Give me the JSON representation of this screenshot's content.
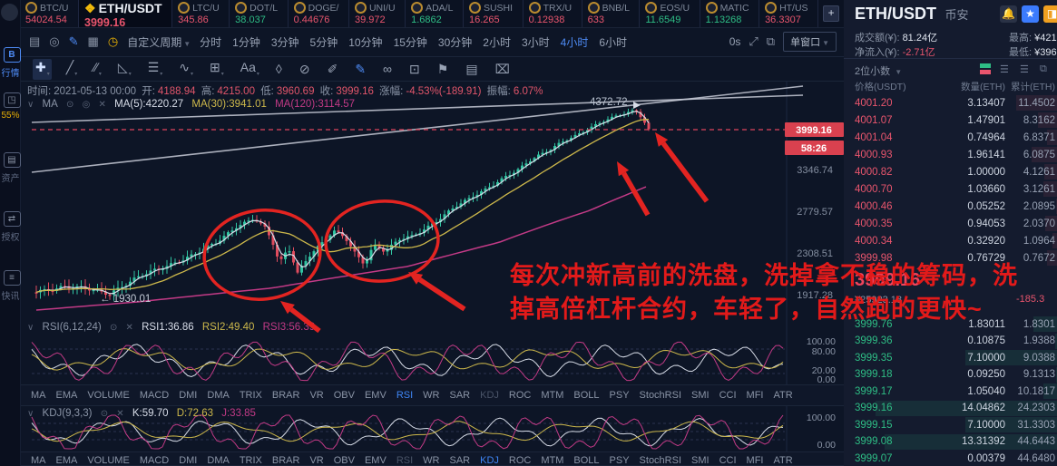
{
  "colors": {
    "up": "#2ebd85",
    "down": "#e9556d",
    "accent": "#4e8bf5",
    "badge": "#d9414f",
    "ma5": "#d8dde8",
    "ma30": "#cdb84b",
    "ma120": "#c23a86",
    "annotation": "#e21a1a"
  },
  "ticker": {
    "pairs": [
      {
        "name": "BTC/U",
        "price": "54024.54",
        "dir": "down"
      },
      {
        "name": "ETH/USDT",
        "price": "3999.16",
        "dir": "down",
        "selected": true
      },
      {
        "name": "LTC/U",
        "price": "345.86",
        "dir": "down"
      },
      {
        "name": "DOT/L",
        "price": "38.037",
        "dir": "up"
      },
      {
        "name": "DOGE/",
        "price": "0.44676",
        "dir": "down"
      },
      {
        "name": "UNI/U",
        "price": "39.972",
        "dir": "down"
      },
      {
        "name": "ADA/L",
        "price": "1.6862",
        "dir": "up"
      },
      {
        "name": "SUSHI",
        "price": "16.265",
        "dir": "down"
      },
      {
        "name": "TRX/U",
        "price": "0.12938",
        "dir": "down"
      },
      {
        "name": "BNB/L",
        "price": "633",
        "dir": "down"
      },
      {
        "name": "EOS/U",
        "price": "11.6549",
        "dir": "up"
      },
      {
        "name": "MATIC",
        "price": "1.13268",
        "dir": "up"
      },
      {
        "name": "HT/US",
        "price": "36.3307",
        "dir": "down"
      }
    ],
    "add_label": "+"
  },
  "sidebar": {
    "items": [
      {
        "label": "行情",
        "icon": "B",
        "style": "blue",
        "name": "sidebar-item-quotes"
      },
      {
        "label": "55%",
        "icon": "◳",
        "style": "yellow",
        "name": "sidebar-item-gauge"
      },
      {
        "label": "资产",
        "icon": "▤",
        "style": "gray",
        "name": "sidebar-item-assets"
      },
      {
        "label": "授权",
        "icon": "⇄",
        "style": "gray",
        "name": "sidebar-item-auth"
      },
      {
        "label": "快讯",
        "icon": "≡",
        "style": "gray",
        "name": "sidebar-item-news"
      }
    ]
  },
  "toolbar": {
    "left_icons": [
      {
        "name": "chart-style-icon",
        "glyph": "▤",
        "color": "#8a94a6"
      },
      {
        "name": "target-icon",
        "glyph": "◎",
        "color": "#8a94a6"
      },
      {
        "name": "draw-pencil-icon",
        "glyph": "✎",
        "color": "#4e8bf5"
      },
      {
        "name": "briefcase-icon",
        "glyph": "▦",
        "color": "#8a94a6"
      },
      {
        "name": "history-clock-icon",
        "glyph": "◷",
        "color": "#e8b004"
      }
    ],
    "period_label": "自定义周期",
    "timeframes": [
      "分时",
      "1分钟",
      "3分钟",
      "5分钟",
      "10分钟",
      "15分钟",
      "30分钟",
      "2小时",
      "3小时",
      "4小时",
      "6小时"
    ],
    "active_timeframe": "4小时",
    "countdown": "0s",
    "window_mode": "单窗口",
    "draw_icons": [
      {
        "name": "crosshair-icon",
        "glyph": "✚",
        "active": true,
        "caret": true
      },
      {
        "name": "trendline-icon",
        "glyph": "╱",
        "caret": true
      },
      {
        "name": "parallel-channel-icon",
        "glyph": "∕∕",
        "caret": true
      },
      {
        "name": "triangle-icon",
        "glyph": "◺",
        "caret": true
      },
      {
        "name": "horizontal-line-icon",
        "glyph": "☰",
        "caret": true
      },
      {
        "name": "wave-icon",
        "glyph": "∿",
        "caret": true
      },
      {
        "name": "fibonacci-box-icon",
        "glyph": "⊞",
        "caret": true
      },
      {
        "name": "text-tool-icon",
        "glyph": "Aa",
        "caret": true
      },
      {
        "name": "eraser-icon",
        "glyph": "◊"
      },
      {
        "name": "disable-draw-icon",
        "glyph": "⊘"
      },
      {
        "name": "pen-icon",
        "glyph": "✐"
      },
      {
        "name": "brush-wave-icon",
        "glyph": "✎",
        "highlight": true
      },
      {
        "name": "measure-icon",
        "glyph": "∞"
      },
      {
        "name": "lock-icon",
        "glyph": "⊡"
      },
      {
        "name": "flag-icon",
        "glyph": "⚑"
      },
      {
        "name": "notes-icon",
        "glyph": "▤"
      },
      {
        "name": "trash-icon",
        "glyph": "⌧"
      }
    ]
  },
  "ohlc": {
    "time_label": "时间:",
    "time": "2021-05-13 00:00",
    "open_label": "开:",
    "open": "4188.94",
    "high_label": "高:",
    "high": "4215.00",
    "low_label": "低:",
    "low": "3960.69",
    "close_label": "收:",
    "close": "3999.16",
    "change_label": "涨幅:",
    "change": "-4.53%(-189.91)",
    "amp_label": "振幅:",
    "amp": "6.07%"
  },
  "ma": {
    "title": "MA",
    "ma5": "MA(5):4220.27",
    "ma30": "MA(30):3941.01",
    "ma120": "MA(120):3114.57"
  },
  "chart": {
    "peak_label": "4372.72",
    "low_label": "← 1930.01",
    "price_badge": "3999.16",
    "countdown_badge": "58:26",
    "axis_labels": [
      "3346.74",
      "2779.57",
      "2308.51",
      "1917.28"
    ],
    "axis_prices": [
      3346.74,
      2779.57,
      2308.51,
      1917.28
    ],
    "current_price": 3999.16,
    "annotation_line1": "每次冲新高前的洗盘，洗掉拿不稳的筹码，洗",
    "annotation_line2": "掉高倍杠杆合约，车轻了，自然跑的更快~"
  },
  "rsi": {
    "title": "RSI(6,12,24)",
    "v1": "RSI1:36.86",
    "v2": "RSI2:49.40",
    "v3": "RSI3:56.39",
    "axis": [
      "100.00",
      "80.00",
      "20.00",
      "0.00"
    ]
  },
  "kdj": {
    "title": "KDJ(9,3,3)",
    "v1": "K:59.70",
    "v2": "D:72.63",
    "v3": "J:33.85",
    "axis": [
      "100.00",
      "0.00"
    ]
  },
  "tabs": {
    "items": [
      "MA",
      "EMA",
      "VOLUME",
      "MACD",
      "DMI",
      "DMA",
      "TRIX",
      "BRAR",
      "VR",
      "OBV",
      "EMV",
      "RSI",
      "WR",
      "SAR",
      "KDJ",
      "ROC",
      "MTM",
      "BOLL",
      "PSY",
      "StochRSI",
      "SMI",
      "CCI",
      "MFI",
      "ATR"
    ],
    "row1_active": "RSI",
    "row1_dim": "KDJ",
    "row2_active": "KDJ",
    "row2_dim": "RSI"
  },
  "orderbook": {
    "symbol": "ETH/USDT",
    "exchange": "币安",
    "turnover_label": "成交额(¥):",
    "turnover": "81.24亿",
    "inflow_label": "净流入(¥):",
    "inflow": "-2.71亿",
    "high_label": "最高:",
    "high": "¥4215.00",
    "low_label": "最低:",
    "low": "¥3960.69",
    "decimals_label": "2位小数",
    "col_price": "价格(USDT)",
    "col_amount": "数量(ETH)",
    "col_total": "累计(ETH)",
    "asks": [
      [
        "4001.20",
        "3.13407",
        "11.4502"
      ],
      [
        "4001.07",
        "1.47901",
        "8.3162"
      ],
      [
        "4001.04",
        "0.74964",
        "6.8371"
      ],
      [
        "4000.93",
        "1.96141",
        "6.0875"
      ],
      [
        "4000.82",
        "1.00000",
        "4.1261"
      ],
      [
        "4000.70",
        "1.03660",
        "3.1261"
      ],
      [
        "4000.46",
        "0.05252",
        "2.0895"
      ],
      [
        "4000.35",
        "0.94053",
        "2.0370"
      ],
      [
        "4000.34",
        "0.32920",
        "1.0964"
      ],
      [
        "3999.98",
        "0.76729",
        "0.7672"
      ]
    ],
    "last_price": "3999.16",
    "last_cny": "¥25923.18",
    "change": "-185.3",
    "bids": [
      [
        "3999.76",
        "1.83011",
        "1.8301"
      ],
      [
        "3999.36",
        "0.10875",
        "1.9388"
      ],
      [
        "3999.35",
        "7.10000",
        "9.0388"
      ],
      [
        "3999.18",
        "0.09250",
        "9.1313"
      ],
      [
        "3999.17",
        "1.05040",
        "10.1817"
      ],
      [
        "3999.16",
        "14.04862",
        "24.2303"
      ],
      [
        "3999.15",
        "7.10000",
        "31.3303"
      ],
      [
        "3999.08",
        "13.31392",
        "44.6443"
      ],
      [
        "3999.07",
        "0.00379",
        "44.6480"
      ]
    ]
  }
}
